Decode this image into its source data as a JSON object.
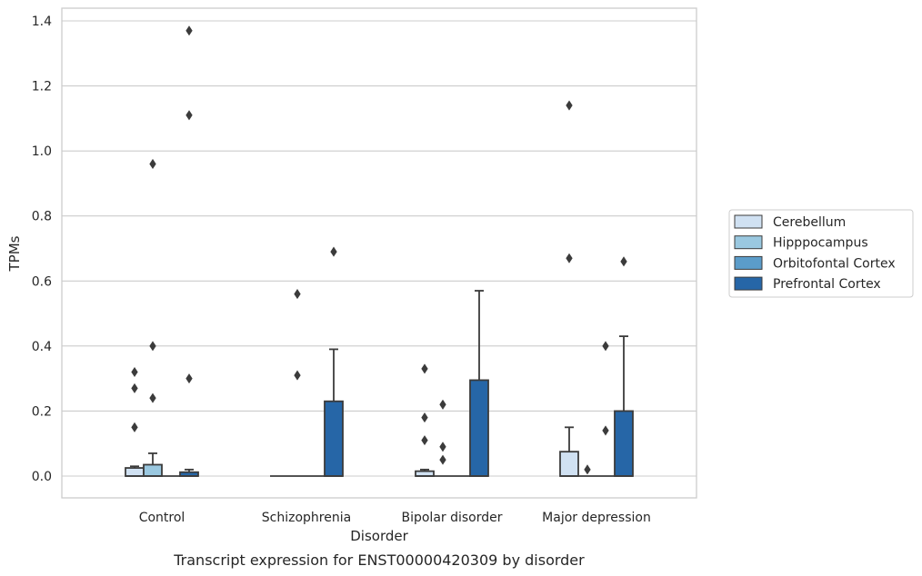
{
  "caption": "Transcript expression for ENST00000420309 by disorder",
  "chart_data": {
    "type": "box",
    "title": "",
    "xlabel": "Disorder",
    "ylabel": "TPMs",
    "ylim": [
      -0.065,
      1.44
    ],
    "yticks": [
      0.0,
      0.2,
      0.4,
      0.6,
      0.8,
      1.0,
      1.2,
      1.4
    ],
    "ytick_labels": [
      "0.0",
      "0.2",
      "0.4",
      "0.6",
      "0.8",
      "1.0",
      "1.2",
      "1.4"
    ],
    "grid": "horizontal",
    "legend_position": "right",
    "categories": [
      "Control",
      "Schizophrenia",
      "Bipolar disorder",
      "Major depression"
    ],
    "series": [
      {
        "name": "Cerebellum",
        "color": "#d0e1f2",
        "boxes": [
          {
            "q1": 0.0,
            "median": 0.0,
            "q3": 0.025,
            "whisker_low": 0.0,
            "whisker_high": 0.03,
            "outliers": [
              0.32,
              0.27,
              0.15
            ]
          },
          {
            "q1": 0.0,
            "median": 0.0,
            "q3": 0.0,
            "whisker_low": 0.0,
            "whisker_high": 0.0,
            "outliers": []
          },
          {
            "q1": 0.0,
            "median": 0.0,
            "q3": 0.015,
            "whisker_low": 0.0,
            "whisker_high": 0.02,
            "outliers": [
              0.33,
              0.18,
              0.11
            ]
          },
          {
            "q1": 0.0,
            "median": 0.0,
            "q3": 0.075,
            "whisker_low": 0.0,
            "whisker_high": 0.15,
            "outliers": [
              1.14,
              0.67
            ]
          }
        ]
      },
      {
        "name": "Hipppocampus",
        "color": "#9ac8e0",
        "boxes": [
          {
            "q1": 0.0,
            "median": 0.0,
            "q3": 0.035,
            "whisker_low": 0.0,
            "whisker_high": 0.07,
            "outliers": [
              0.96,
              0.4,
              0.24
            ]
          },
          {
            "q1": 0.0,
            "median": 0.0,
            "q3": 0.0,
            "whisker_low": 0.0,
            "whisker_high": 0.0,
            "outliers": [
              0.56,
              0.31
            ]
          },
          {
            "q1": 0.0,
            "median": 0.0,
            "q3": 0.0,
            "whisker_low": 0.0,
            "whisker_high": 0.0,
            "outliers": [
              0.22,
              0.09,
              0.05
            ]
          },
          {
            "q1": 0.0,
            "median": 0.0,
            "q3": 0.0,
            "whisker_low": 0.0,
            "whisker_high": 0.0,
            "outliers": [
              0.02
            ]
          }
        ]
      },
      {
        "name": "Orbitofontal Cortex",
        "color": "#5b9cc9",
        "boxes": [
          {
            "q1": 0.0,
            "median": 0.0,
            "q3": 0.0,
            "whisker_low": 0.0,
            "whisker_high": 0.0,
            "outliers": []
          },
          {
            "q1": 0.0,
            "median": 0.0,
            "q3": 0.0,
            "whisker_low": 0.0,
            "whisker_high": 0.0,
            "outliers": []
          },
          {
            "q1": 0.0,
            "median": 0.0,
            "q3": 0.0,
            "whisker_low": 0.0,
            "whisker_high": 0.0,
            "outliers": []
          },
          {
            "q1": 0.0,
            "median": 0.0,
            "q3": 0.0,
            "whisker_low": 0.0,
            "whisker_high": 0.0,
            "outliers": [
              0.4,
              0.14
            ]
          }
        ]
      },
      {
        "name": "Prefrontal Cortex",
        "color": "#2666a7",
        "boxes": [
          {
            "q1": 0.0,
            "median": 0.0,
            "q3": 0.012,
            "whisker_low": 0.0,
            "whisker_high": 0.02,
            "outliers": [
              1.37,
              1.11,
              0.3
            ]
          },
          {
            "q1": 0.0,
            "median": 0.0,
            "q3": 0.23,
            "whisker_low": 0.0,
            "whisker_high": 0.39,
            "outliers": [
              0.69
            ]
          },
          {
            "q1": 0.0,
            "median": 0.0,
            "q3": 0.295,
            "whisker_low": 0.0,
            "whisker_high": 0.57,
            "outliers": []
          },
          {
            "q1": 0.0,
            "median": 0.0,
            "q3": 0.2,
            "whisker_low": 0.0,
            "whisker_high": 0.43,
            "outliers": [
              0.66
            ]
          }
        ]
      }
    ]
  }
}
